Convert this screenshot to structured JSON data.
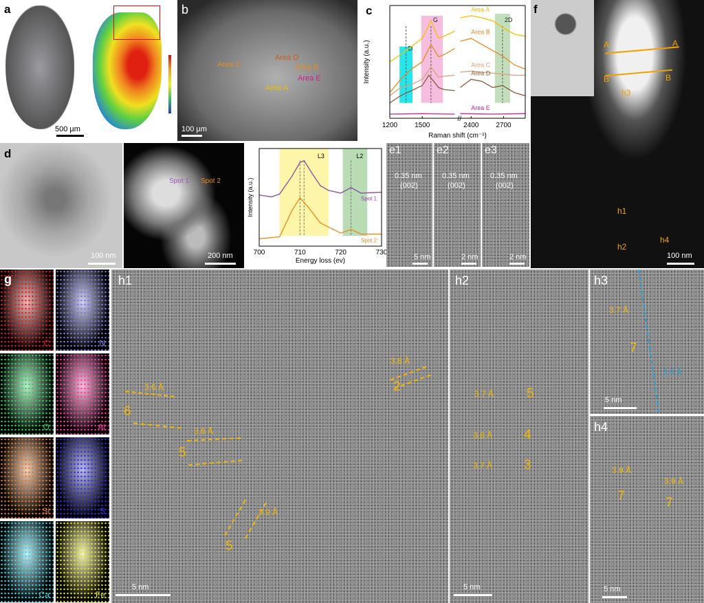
{
  "panels": {
    "a": {
      "label": "a",
      "scale": "500 µm"
    },
    "b": {
      "label": "b",
      "scale": "100 µm",
      "areas": [
        "Area A",
        "Area B",
        "Area C",
        "Area D",
        "Area E"
      ]
    },
    "c": {
      "label": "c"
    },
    "d": {
      "label": "d",
      "scale1": "100 nm",
      "scale2": "200 nm",
      "spot1": "Spot 1",
      "spot2": "Spot 2"
    },
    "e": [
      {
        "label": "e1",
        "d": "0.35 nm",
        "hkl": "(002)",
        "scale": "5 nm"
      },
      {
        "label": "e2",
        "d": "0.35 nm",
        "hkl": "(002)",
        "scale": "2 nm"
      },
      {
        "label": "e3",
        "d": "0.35 nm",
        "hkl": "(002)",
        "scale": "2 nm"
      }
    ],
    "f": {
      "label": "f",
      "A": "A",
      "Ap": "A'",
      "B": "B",
      "Bp": "B'",
      "h1": "h1",
      "h2": "h2",
      "h3": "h3",
      "h4": "h4",
      "scale": "100 nm"
    },
    "g": {
      "label": "g",
      "maps": [
        {
          "el": "C",
          "color": "#e02020"
        },
        {
          "el": "N",
          "color": "#7a7ae0"
        },
        {
          "el": "O",
          "color": "#30d060"
        },
        {
          "el": "Al",
          "color": "#ff3aa0"
        },
        {
          "el": "Si",
          "color": "#e07a30"
        },
        {
          "el": "S",
          "color": "#3030e0"
        },
        {
          "el": "Ca",
          "color": "#40d0e0"
        },
        {
          "el": "Fe",
          "color": "#e0e030"
        }
      ]
    },
    "h1": {
      "label": "h1",
      "scale": "5 nm",
      "annot": [
        "3.6 Å",
        "3.6 Å",
        "3.9 Å",
        "3.8 Å"
      ],
      "nums": [
        "6",
        "5",
        "5",
        "2"
      ]
    },
    "h2": {
      "label": "h2",
      "scale": "5 nm",
      "annot": [
        "3.7 Å",
        "3.8 Å",
        "3.7 Å"
      ],
      "nums": [
        "5",
        "4",
        "3"
      ]
    },
    "h3": {
      "label": "h3",
      "scale": "5 nm",
      "annot": [
        "3.7 Å",
        "3.6 Å"
      ],
      "nums": [
        "7"
      ]
    },
    "h4": {
      "label": "h4",
      "scale": "5 nm",
      "annot": [
        "3.9 Å",
        "3.9 Å"
      ],
      "nums": [
        "7",
        "7"
      ]
    }
  },
  "chart_data": [
    {
      "type": "line",
      "xlabel": "Raman shift (cm-1)",
      "ylabel": "Intensity (a.u.)",
      "x_ticks": [
        1200,
        1500,
        2400,
        2700
      ],
      "x_break": [
        1800,
        2300
      ],
      "xlim": [
        1200,
        2900
      ],
      "ylim": [
        0,
        1.1
      ],
      "bands": [
        {
          "name": "D",
          "center": 1350,
          "range": [
            1290,
            1410
          ],
          "color": "#00e0e8"
        },
        {
          "name": "G",
          "center": 1580,
          "range": [
            1490,
            1690
          ],
          "color": "#f5b3d8"
        },
        {
          "name": "2D",
          "center": 2690,
          "range": [
            2620,
            2760
          ],
          "color": "#b8d8b0"
        }
      ],
      "series": [
        {
          "name": "Area A",
          "color": "#f2c200",
          "x": [
            1200,
            1300,
            1400,
            1500,
            1580,
            1650,
            1700,
            1800,
            2300,
            2400,
            2500,
            2600,
            2700,
            2800,
            2900
          ],
          "y": [
            0.55,
            0.62,
            0.7,
            0.78,
            0.95,
            0.78,
            0.8,
            0.85,
            0.98,
            1.0,
            0.98,
            0.95,
            0.88,
            0.82,
            0.8
          ]
        },
        {
          "name": "Area B",
          "color": "#e98a1e",
          "x": [
            1200,
            1300,
            1400,
            1500,
            1580,
            1650,
            1700,
            1800,
            2300,
            2400,
            2500,
            2600,
            2700,
            2800,
            2900
          ],
          "y": [
            0.25,
            0.38,
            0.48,
            0.55,
            0.72,
            0.6,
            0.62,
            0.68,
            0.75,
            0.78,
            0.72,
            0.66,
            0.6,
            0.52,
            0.48
          ]
        },
        {
          "name": "Area C",
          "color": "#d9a080",
          "x": [
            1200,
            1300,
            1400,
            1500,
            1580,
            1650,
            1700,
            1800,
            2300,
            2400,
            2500,
            2600,
            2700,
            2800,
            2900
          ],
          "y": [
            0.22,
            0.3,
            0.33,
            0.38,
            0.5,
            0.4,
            0.41,
            0.42,
            0.45,
            0.46,
            0.45,
            0.44,
            0.43,
            0.42,
            0.42
          ]
        },
        {
          "name": "Area D",
          "color": "#8a5a3a",
          "x": [
            1200,
            1300,
            1400,
            1500,
            1560,
            1650,
            1700,
            1800,
            2300,
            2400,
            2500,
            2600,
            2690,
            2800,
            2900
          ],
          "y": [
            0.15,
            0.22,
            0.27,
            0.32,
            0.42,
            0.3,
            0.28,
            0.27,
            0.3,
            0.38,
            0.36,
            0.3,
            0.32,
            0.25,
            0.22
          ]
        },
        {
          "name": "Area E",
          "color": "#d02090",
          "x": [
            1200,
            1500,
            1800,
            2300,
            2600,
            2900
          ],
          "y": [
            0.04,
            0.045,
            0.04,
            0.045,
            0.04,
            0.045
          ]
        }
      ]
    },
    {
      "type": "line",
      "xlabel": "Energy loss (ev)",
      "ylabel": "Intensity (a.u.)",
      "x_ticks": [
        700,
        710,
        720,
        730
      ],
      "xlim": [
        700,
        730
      ],
      "ylim": [
        0,
        1.05
      ],
      "bands": [
        {
          "name": "L3",
          "range": [
            705,
            717
          ],
          "lines": [
            710,
            711
          ],
          "color": "#fdf6a8"
        },
        {
          "name": "L2",
          "range": [
            720.5,
            726.5
          ],
          "lines": [
            722.5
          ],
          "color": "#b9dcb5"
        }
      ],
      "series": [
        {
          "name": "Spot 1",
          "color": "#8a4aa0",
          "x": [
            700,
            703,
            705,
            708,
            710,
            711,
            713,
            715,
            717,
            720,
            722.5,
            725,
            730
          ],
          "y": [
            0.55,
            0.53,
            0.56,
            0.75,
            0.9,
            0.92,
            0.78,
            0.65,
            0.6,
            0.57,
            0.63,
            0.57,
            0.58
          ]
        },
        {
          "name": "Spot 2",
          "color": "#e98a1e",
          "x": [
            700,
            705,
            708,
            710,
            712,
            715,
            720,
            722.5,
            725,
            730
          ],
          "y": [
            0.08,
            0.1,
            0.38,
            0.52,
            0.42,
            0.25,
            0.14,
            0.18,
            0.13,
            0.13
          ]
        }
      ]
    }
  ]
}
